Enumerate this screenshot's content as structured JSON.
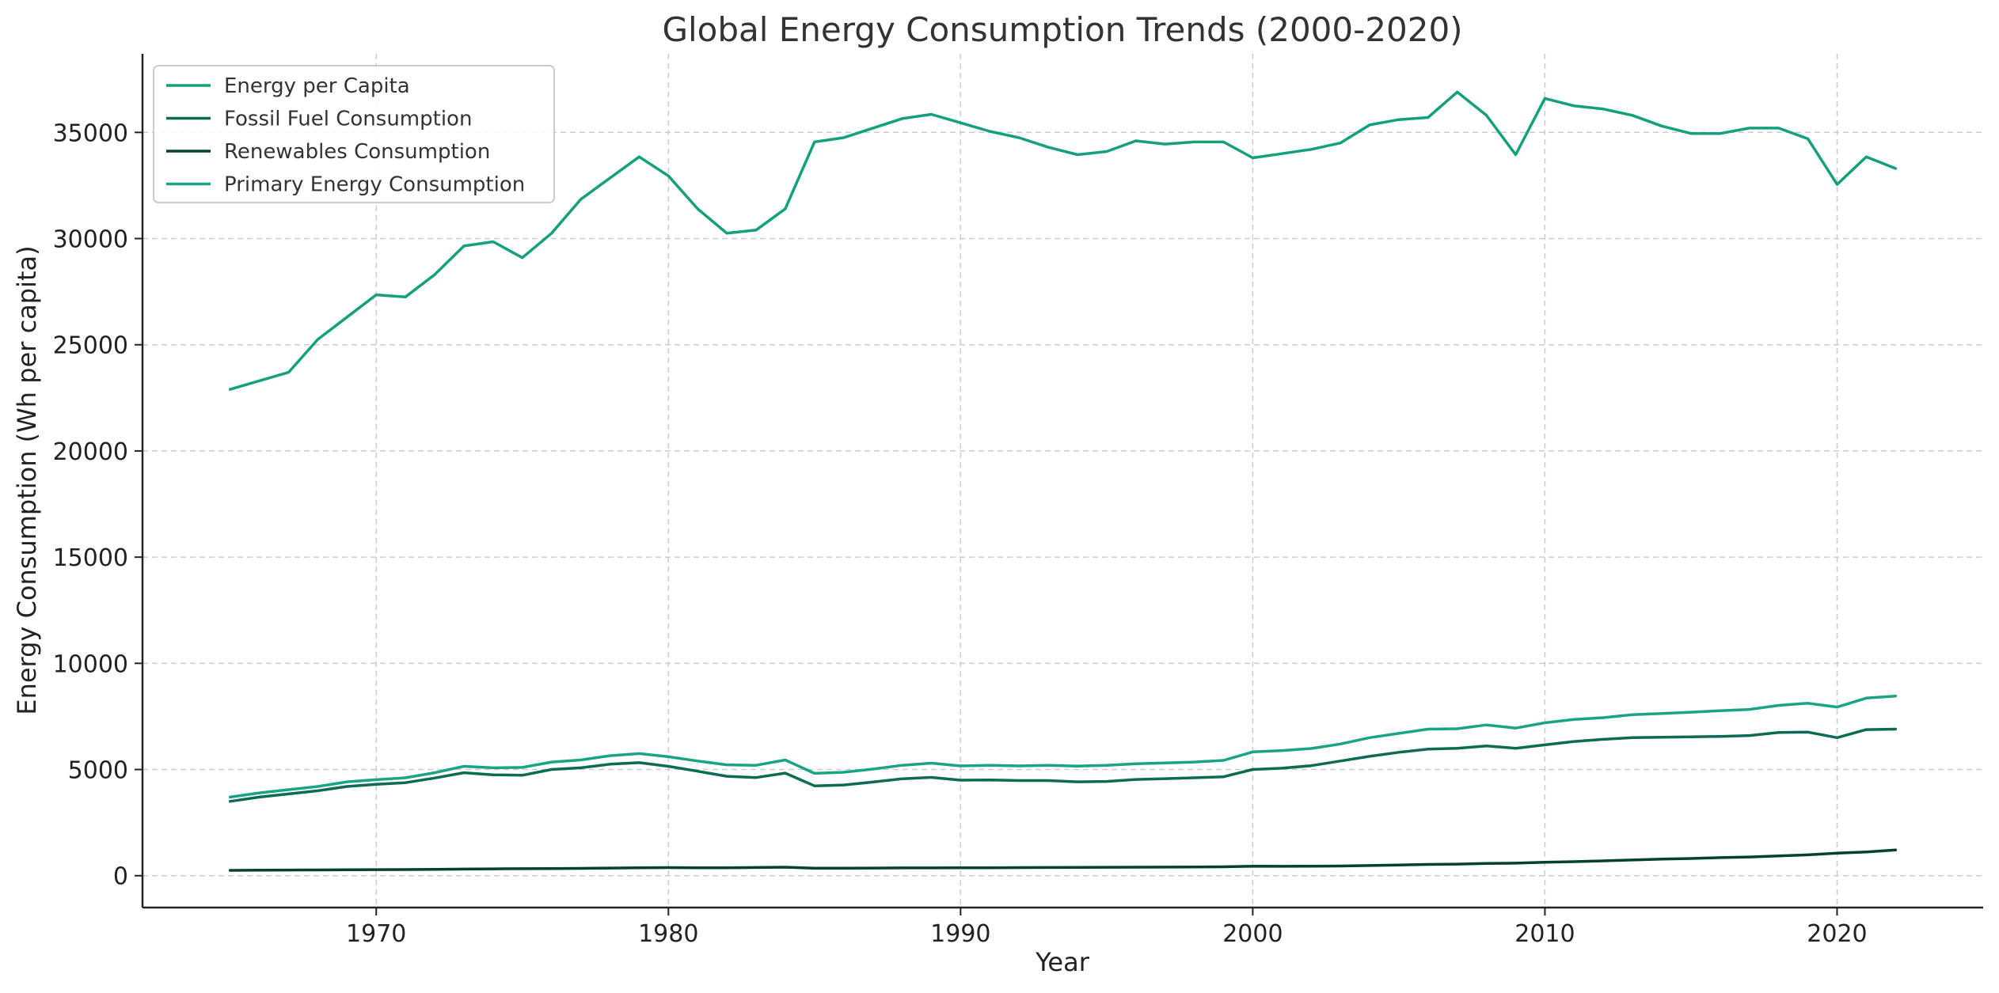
{
  "chart_data": {
    "type": "line",
    "title": "Global Energy Consumption Trends (2000-2020)",
    "xlabel": "Year",
    "ylabel": "Energy Consumption (Wh per capita)",
    "xlim": [
      1962,
      2025
    ],
    "ylim": [
      -1500,
      38700
    ],
    "xticks": [
      1970,
      1980,
      1990,
      2000,
      2010,
      2020
    ],
    "yticks": [
      0,
      5000,
      10000,
      15000,
      20000,
      25000,
      30000,
      35000
    ],
    "grid": true,
    "legend_position": "top-left",
    "x": [
      1965,
      1966,
      1967,
      1968,
      1969,
      1970,
      1971,
      1972,
      1973,
      1974,
      1975,
      1976,
      1977,
      1978,
      1979,
      1980,
      1981,
      1982,
      1983,
      1984,
      1985,
      1986,
      1987,
      1988,
      1989,
      1990,
      1991,
      1992,
      1993,
      1994,
      1995,
      1996,
      1997,
      1998,
      1999,
      2000,
      2001,
      2002,
      2003,
      2004,
      2005,
      2006,
      2007,
      2008,
      2009,
      2010,
      2011,
      2012,
      2013,
      2014,
      2015,
      2016,
      2017,
      2018,
      2019,
      2020,
      2021,
      2022
    ],
    "series": [
      {
        "name": "Energy per Capita",
        "color": "#14a07c",
        "values": [
          22900,
          23300,
          23700,
          25250,
          26300,
          27350,
          27250,
          28300,
          29650,
          29850,
          29100,
          30250,
          31850,
          32850,
          33850,
          32950,
          31400,
          30250,
          30400,
          31400,
          34550,
          34750,
          35200,
          35650,
          35850,
          35450,
          35050,
          34750,
          34300,
          33950,
          34100,
          34600,
          34450,
          34550,
          34550,
          33800,
          34000,
          34200,
          34500,
          35350,
          35600,
          35700,
          36900,
          35800,
          33950,
          36600,
          36250,
          36100,
          35800,
          35300,
          34950,
          34950,
          35200,
          35200,
          34700,
          32550,
          33850,
          33300
        ]
      },
      {
        "name": "Fossil Fuel Consumption",
        "color": "#0d6b53",
        "values": [
          3500,
          3700,
          3850,
          4000,
          4200,
          4300,
          4380,
          4600,
          4850,
          4750,
          4730,
          5000,
          5080,
          5250,
          5320,
          5150,
          4920,
          4680,
          4620,
          4830,
          4230,
          4270,
          4410,
          4560,
          4630,
          4500,
          4510,
          4480,
          4480,
          4420,
          4440,
          4530,
          4570,
          4610,
          4660,
          5000,
          5060,
          5180,
          5400,
          5620,
          5810,
          5960,
          6000,
          6110,
          6000,
          6160,
          6320,
          6420,
          6500,
          6520,
          6540,
          6560,
          6600,
          6740,
          6760,
          6500,
          6880,
          6900
        ]
      },
      {
        "name": "Renewables Consumption",
        "color": "#06402f",
        "values": [
          250,
          260,
          265,
          270,
          280,
          285,
          290,
          300,
          310,
          320,
          330,
          335,
          345,
          360,
          375,
          380,
          375,
          375,
          385,
          400,
          350,
          355,
          360,
          365,
          365,
          370,
          375,
          380,
          385,
          390,
          395,
          400,
          405,
          410,
          420,
          450,
          440,
          445,
          455,
          480,
          500,
          530,
          545,
          580,
          590,
          630,
          660,
          700,
          740,
          780,
          810,
          850,
          880,
          930,
          980,
          1060,
          1120,
          1210
        ]
      },
      {
        "name": "Primary Energy Consumption",
        "color": "#19a585",
        "values": [
          3700,
          3900,
          4050,
          4200,
          4420,
          4520,
          4610,
          4850,
          5150,
          5080,
          5100,
          5350,
          5450,
          5650,
          5750,
          5600,
          5400,
          5220,
          5200,
          5450,
          4820,
          4870,
          5020,
          5200,
          5300,
          5170,
          5200,
          5170,
          5200,
          5160,
          5200,
          5270,
          5310,
          5350,
          5430,
          5830,
          5890,
          5990,
          6200,
          6500,
          6700,
          6900,
          6920,
          7100,
          6950,
          7200,
          7360,
          7440,
          7580,
          7640,
          7700,
          7770,
          7830,
          8020,
          8120,
          7940,
          8360,
          8460
        ]
      }
    ]
  }
}
